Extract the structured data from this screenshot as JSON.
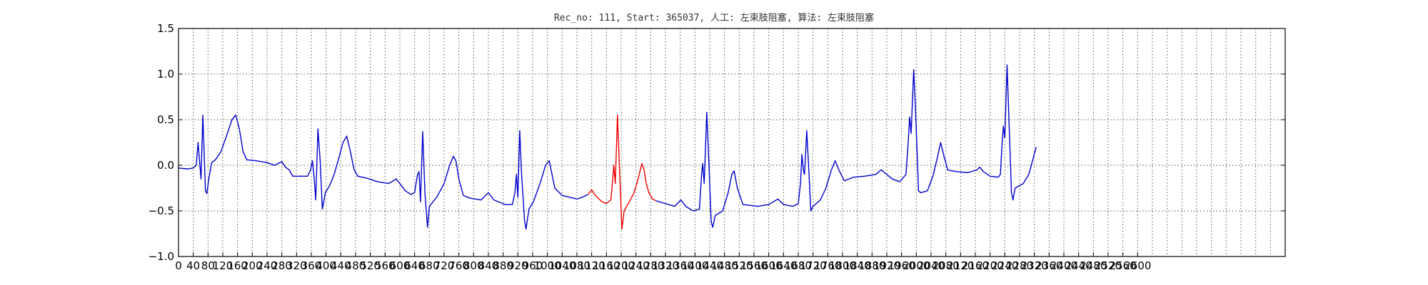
{
  "chart_data": {
    "type": "line",
    "title": "Rec_no: 111, Start: 365037, 人工: 左束肢阻塞, 算法: 左束肢阻塞",
    "xlabel": "",
    "ylabel": "",
    "xlim": [
      0,
      3000
    ],
    "ylim": [
      -1.0,
      1.5
    ],
    "grid": true,
    "y_ticks": [
      -1.0,
      -0.5,
      0.0,
      0.5,
      1.0,
      1.5
    ],
    "y_tick_labels": [
      "−1.0",
      "−0.5",
      "0.0",
      "0.5",
      "1.0",
      "1.5"
    ],
    "x_ticks": [
      0,
      40,
      80,
      120,
      160,
      200,
      240,
      280,
      320,
      360,
      400,
      440,
      480,
      520,
      560,
      600,
      640,
      680,
      720,
      760,
      800,
      840,
      880,
      920,
      960,
      1000,
      1040,
      1080,
      1120,
      1160,
      1200,
      1240,
      1280,
      1320,
      1360,
      1400,
      1440,
      1480,
      1520,
      1560,
      1600,
      1640,
      1680,
      1720,
      1760,
      1800,
      1840,
      1880,
      1920,
      1960,
      2000,
      2040,
      2080,
      2120,
      2160,
      2200,
      2240,
      2280,
      2320,
      2360,
      2400,
      2440,
      2480,
      2520,
      2560,
      2600
    ],
    "x_tick_labels": [
      "0",
      "40",
      "80",
      "120",
      "160",
      "200",
      "240",
      "280",
      "320",
      "360",
      "400",
      "440",
      "480",
      "520",
      "560",
      "600",
      "640",
      "680",
      "720",
      "760",
      "800",
      "840",
      "880",
      "920",
      "960",
      "1000",
      "1040",
      "1080",
      "1120",
      "1160",
      "1200",
      "1240",
      "1280",
      "1320",
      "1360",
      "1400",
      "1440",
      "1480",
      "1520",
      "1560",
      "1600",
      "1640",
      "1680",
      "1720",
      "1760",
      "1800",
      "1840",
      "1880",
      "1920",
      "1960",
      "2000",
      "2040",
      "2080",
      "2120",
      "2160",
      "2200",
      "2240",
      "2280",
      "2320",
      "2360",
      "2400",
      "2440",
      "2480",
      "2520",
      "2560",
      "2600"
    ],
    "x_gridlines": [
      40,
      80,
      120,
      160,
      200,
      240,
      280,
      320,
      360,
      400,
      440,
      480,
      520,
      560,
      600,
      640,
      680,
      720,
      760,
      800,
      840,
      880,
      920,
      960,
      1000,
      1040,
      1080,
      1120,
      1160,
      1200,
      1240,
      1280,
      1320,
      1360,
      1400,
      1440,
      1480,
      1520,
      1560,
      1600,
      1640,
      1680,
      1720,
      1760,
      1800,
      1840,
      1880,
      1920,
      1960,
      2000,
      2040,
      2080,
      2120,
      2160,
      2200,
      2240,
      2280,
      2320,
      2360,
      2400,
      2440,
      2480,
      2520,
      2560,
      2600,
      2640,
      2680,
      2720,
      2760,
      2800,
      2840,
      2880,
      2920,
      2960
    ],
    "series": [
      {
        "color": "#0000cc",
        "points": [
          [
            0,
            -0.03
          ],
          [
            25,
            -0.04
          ],
          [
            40,
            -0.03
          ],
          [
            48,
            0.0
          ],
          [
            53,
            0.25
          ],
          [
            57,
            0.05
          ],
          [
            61,
            -0.15
          ],
          [
            66,
            0.55
          ],
          [
            69,
            0.2
          ],
          [
            73,
            -0.28
          ],
          [
            77,
            -0.31
          ],
          [
            82,
            -0.15
          ],
          [
            90,
            0.03
          ],
          [
            100,
            0.06
          ],
          [
            115,
            0.15
          ],
          [
            130,
            0.32
          ],
          [
            145,
            0.5
          ],
          [
            155,
            0.55
          ],
          [
            165,
            0.4
          ],
          [
            175,
            0.15
          ],
          [
            185,
            0.06
          ],
          [
            210,
            0.05
          ],
          [
            240,
            0.03
          ],
          [
            260,
            0.0
          ],
          [
            280,
            0.04
          ],
          [
            290,
            -0.02
          ],
          [
            300,
            -0.05
          ],
          [
            310,
            -0.12
          ],
          [
            330,
            -0.12
          ],
          [
            350,
            -0.12
          ],
          [
            358,
            -0.05
          ],
          [
            363,
            0.05
          ],
          [
            368,
            -0.15
          ],
          [
            372,
            -0.38
          ],
          [
            378,
            0.4
          ],
          [
            384,
            0.05
          ],
          [
            390,
            -0.48
          ],
          [
            398,
            -0.3
          ],
          [
            410,
            -0.22
          ],
          [
            422,
            -0.1
          ],
          [
            436,
            0.1
          ],
          [
            446,
            0.25
          ],
          [
            456,
            0.32
          ],
          [
            466,
            0.15
          ],
          [
            476,
            -0.05
          ],
          [
            486,
            -0.12
          ],
          [
            510,
            -0.14
          ],
          [
            540,
            -0.18
          ],
          [
            570,
            -0.2
          ],
          [
            590,
            -0.15
          ],
          [
            600,
            -0.2
          ],
          [
            615,
            -0.28
          ],
          [
            630,
            -0.32
          ],
          [
            640,
            -0.3
          ],
          [
            648,
            -0.1
          ],
          [
            652,
            -0.07
          ],
          [
            656,
            -0.4
          ],
          [
            662,
            0.37
          ],
          [
            668,
            -0.3
          ],
          [
            675,
            -0.68
          ],
          [
            680,
            -0.45
          ],
          [
            700,
            -0.35
          ],
          [
            720,
            -0.2
          ],
          [
            735,
            0.0
          ],
          [
            745,
            0.1
          ],
          [
            752,
            0.05
          ],
          [
            760,
            -0.15
          ],
          [
            772,
            -0.33
          ],
          [
            790,
            -0.36
          ],
          [
            820,
            -0.38
          ],
          [
            840,
            -0.3
          ],
          [
            855,
            -0.38
          ],
          [
            885,
            -0.43
          ],
          [
            905,
            -0.43
          ],
          [
            912,
            -0.3
          ],
          [
            916,
            -0.1
          ],
          [
            920,
            -0.35
          ],
          [
            925,
            0.38
          ],
          [
            930,
            -0.1
          ],
          [
            938,
            -0.6
          ],
          [
            942,
            -0.7
          ],
          [
            950,
            -0.48
          ],
          [
            962,
            -0.4
          ],
          [
            980,
            -0.2
          ],
          [
            995,
            0.0
          ],
          [
            1005,
            0.05
          ],
          [
            1020,
            -0.25
          ],
          [
            1040,
            -0.33
          ],
          [
            1060,
            -0.35
          ],
          [
            1080,
            -0.37
          ],
          [
            1095,
            -0.35
          ],
          [
            1110,
            -0.32
          ]
        ]
      },
      {
        "color": "#ee0000",
        "points": [
          [
            1110,
            -0.32
          ],
          [
            1120,
            -0.27
          ],
          [
            1130,
            -0.33
          ],
          [
            1148,
            -0.4
          ],
          [
            1160,
            -0.42
          ],
          [
            1172,
            -0.38
          ],
          [
            1176,
            -0.2
          ],
          [
            1180,
            0.0
          ],
          [
            1184,
            -0.2
          ],
          [
            1190,
            0.55
          ],
          [
            1195,
            0.0
          ],
          [
            1202,
            -0.7
          ],
          [
            1208,
            -0.5
          ],
          [
            1222,
            -0.4
          ],
          [
            1235,
            -0.3
          ],
          [
            1246,
            -0.15
          ],
          [
            1256,
            0.02
          ],
          [
            1262,
            -0.05
          ],
          [
            1268,
            -0.2
          ],
          [
            1275,
            -0.3
          ],
          [
            1285,
            -0.37
          ],
          [
            1295,
            -0.39
          ]
        ]
      },
      {
        "color": "#0000cc",
        "points": [
          [
            1295,
            -0.39
          ],
          [
            1320,
            -0.42
          ],
          [
            1345,
            -0.45
          ],
          [
            1362,
            -0.38
          ],
          [
            1375,
            -0.45
          ],
          [
            1395,
            -0.5
          ],
          [
            1412,
            -0.48
          ],
          [
            1418,
            -0.1
          ],
          [
            1421,
            0.02
          ],
          [
            1425,
            -0.2
          ],
          [
            1432,
            0.58
          ],
          [
            1438,
            0.0
          ],
          [
            1444,
            -0.62
          ],
          [
            1448,
            -0.68
          ],
          [
            1455,
            -0.55
          ],
          [
            1475,
            -0.5
          ],
          [
            1490,
            -0.3
          ],
          [
            1500,
            -0.1
          ],
          [
            1506,
            -0.06
          ],
          [
            1515,
            -0.25
          ],
          [
            1530,
            -0.43
          ],
          [
            1570,
            -0.45
          ],
          [
            1600,
            -0.43
          ],
          [
            1625,
            -0.37
          ],
          [
            1640,
            -0.43
          ],
          [
            1665,
            -0.45
          ],
          [
            1680,
            -0.42
          ],
          [
            1686,
            -0.2
          ],
          [
            1690,
            0.12
          ],
          [
            1694,
            -0.05
          ],
          [
            1697,
            -0.1
          ],
          [
            1703,
            0.38
          ],
          [
            1708,
            0.0
          ],
          [
            1714,
            -0.5
          ],
          [
            1720,
            -0.45
          ],
          [
            1740,
            -0.38
          ],
          [
            1755,
            -0.25
          ],
          [
            1770,
            -0.05
          ],
          [
            1780,
            0.05
          ],
          [
            1790,
            -0.05
          ],
          [
            1805,
            -0.17
          ],
          [
            1830,
            -0.13
          ],
          [
            1860,
            -0.12
          ],
          [
            1890,
            -0.1
          ],
          [
            1905,
            -0.05
          ],
          [
            1920,
            -0.1
          ],
          [
            1935,
            -0.15
          ],
          [
            1955,
            -0.18
          ],
          [
            1972,
            -0.1
          ],
          [
            1978,
            0.25
          ],
          [
            1982,
            0.53
          ],
          [
            1986,
            0.35
          ],
          [
            1993,
            1.05
          ],
          [
            1999,
            0.5
          ],
          [
            2006,
            -0.28
          ],
          [
            2012,
            -0.3
          ],
          [
            2030,
            -0.28
          ],
          [
            2045,
            -0.12
          ],
          [
            2058,
            0.1
          ],
          [
            2066,
            0.25
          ],
          [
            2075,
            0.1
          ],
          [
            2085,
            -0.05
          ],
          [
            2110,
            -0.07
          ],
          [
            2140,
            -0.08
          ],
          [
            2165,
            -0.05
          ],
          [
            2172,
            -0.02
          ],
          [
            2182,
            -0.07
          ],
          [
            2200,
            -0.12
          ],
          [
            2222,
            -0.13
          ],
          [
            2228,
            -0.1
          ],
          [
            2232,
            0.2
          ],
          [
            2236,
            0.43
          ],
          [
            2240,
            0.3
          ],
          [
            2246,
            1.1
          ],
          [
            2252,
            0.4
          ],
          [
            2258,
            -0.3
          ],
          [
            2262,
            -0.38
          ],
          [
            2268,
            -0.25
          ],
          [
            2290,
            -0.2
          ],
          [
            2305,
            -0.1
          ],
          [
            2315,
            0.05
          ],
          [
            2325,
            0.2
          ]
        ]
      }
    ]
  }
}
